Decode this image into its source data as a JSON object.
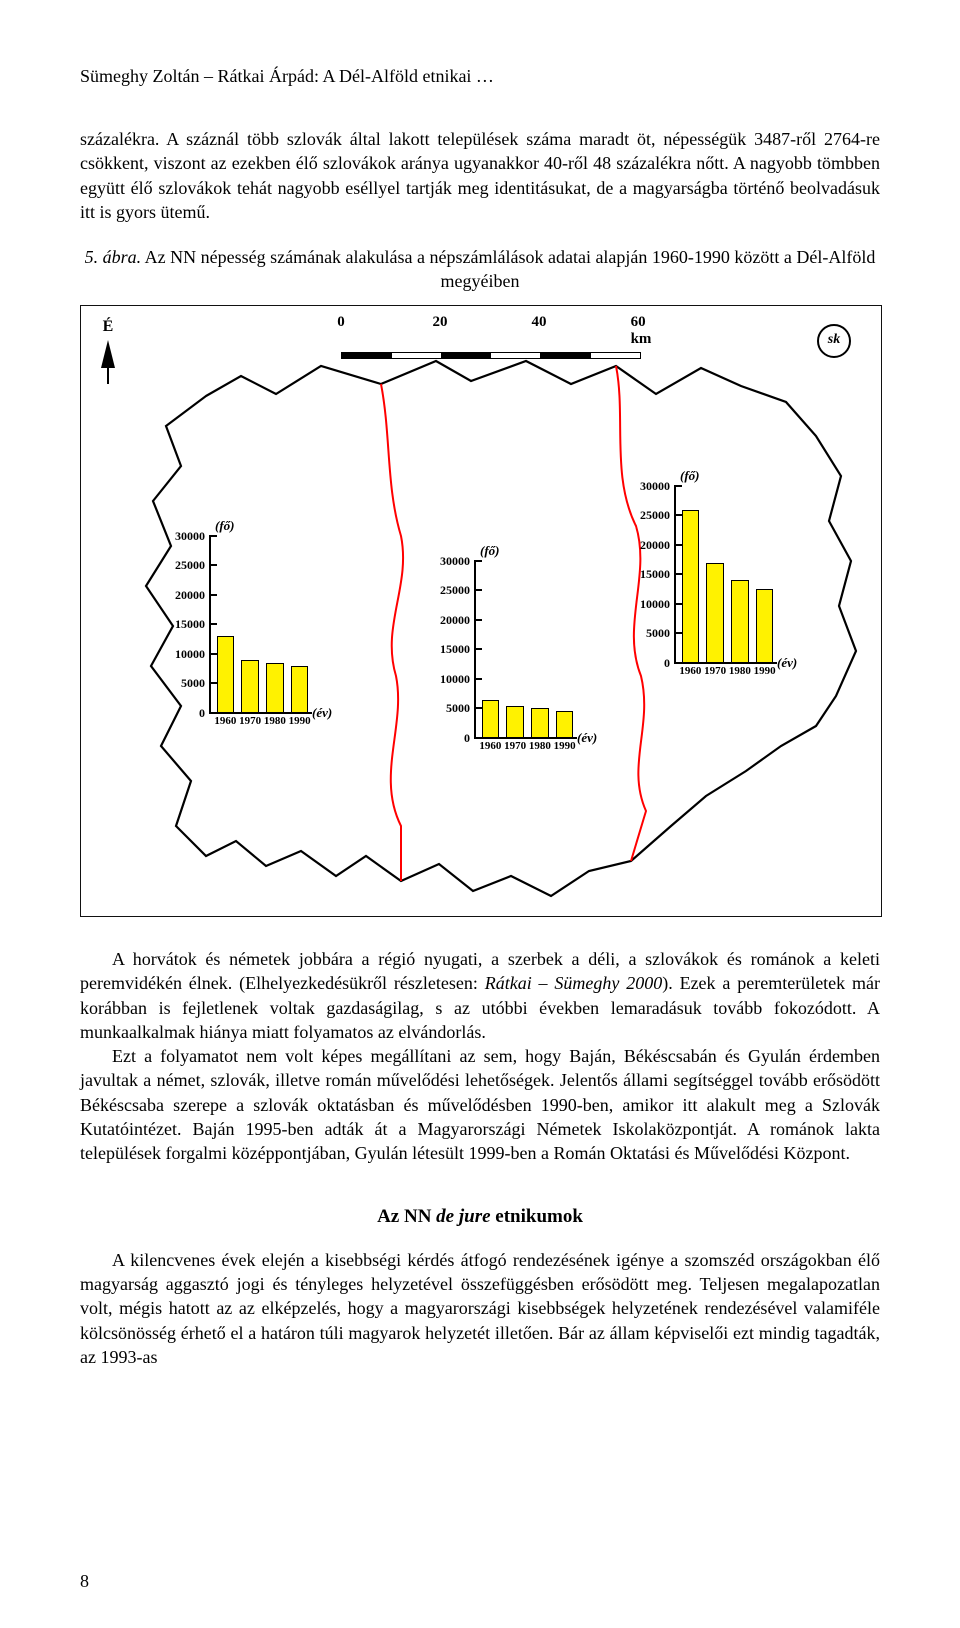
{
  "running_head": "Sümeghy Zoltán – Rátkai Árpád: A Dél-Alföld etnikai …",
  "para1": "százalékra. A száznál több szlovák által lakott települések száma maradt öt, népességük 3487-ről 2764-re csökkent, viszont az ezekben élő szlovákok aránya ugyanakkor 40-ről 48 százalékra nőtt. A nagyobb tömbben együtt élő szlovákok tehát nagyobb eséllyel tartják meg identitásukat, de a magyarságba történő beolvadásuk itt is gyors ütemű.",
  "caption": {
    "fig_label": "5. ábra.",
    "text": " Az NN népesség számának alakulása a népszámlálások adatai alapján 1960-1990 között a Dél-Alföld megyéiben"
  },
  "para2a": "A horvátok és németek jobbára a régió nyugati, a szerbek a déli, a szlovákok és románok a keleti peremvidékén élnek. (Elhelyezkedésükről részletesen: ",
  "para2b_ital": "Rátkai – Sümeghy 2000",
  "para2c": "). Ezek a peremterületek már korábban is fejletlenek voltak gazdaságilag, s az utóbbi években lemaradásuk tovább fokozódott. A munkaalkalmak hiánya miatt folyamatos az elvándorlás.",
  "para3": "Ezt a folyamatot nem volt képes megállítani az sem, hogy Baján, Békéscsabán és Gyulán érdemben javultak a német, szlovák, illetve román művelődési lehetőségek. Jelentős állami segítséggel tovább erősödött Békéscsaba szerepe a szlovák oktatásban és művelődésben 1990-ben, amikor itt alakult meg a Szlovák Kutatóintézet. Baján 1995-ben adták át a Magyarországi Németek Iskolaközpontját. A románok lakta települések forgalmi középpontjában, Gyulán létesült 1999-ben a Román Oktatási és Művelődési Központ.",
  "section_heading_a": "Az NN ",
  "section_heading_b_ital": "de jure",
  "section_heading_c": " etnikumok",
  "para4": "A kilencvenes évek elején a kisebbségi kérdés átfogó rendezésének igénye a szomszéd országokban élő magyarság aggasztó jogi és tényleges helyzetével összefüggésben erősödött meg. Teljesen megalapozatlan volt, mégis hatott az az elképzelés, hogy a magyarországi kisebbségek helyzetének rendezésével valamiféle kölcsönösség érhető el a határon túli magyarok helyzetét illetően. Bár az állam képviselői ezt mindig tagadták, az 1993-as",
  "page_num": "8",
  "figure": {
    "north_label": "É",
    "sk_label": "sk",
    "scale": {
      "ticks": [
        "0",
        "20",
        "40",
        "60 km"
      ]
    },
    "axis_unit": "(fő)",
    "year_unit": "(év)",
    "years": [
      "1960",
      "1970",
      "1980",
      "1990"
    ],
    "bar_color": "#fff200",
    "bar_border": "#000000",
    "map_outline_color": "#000000",
    "county_border_color": "#ff0000",
    "chart_left": {
      "ymax": 30000,
      "ytick_step": 5000,
      "values": [
        13000,
        9000,
        8500,
        8000
      ],
      "ylabels": [
        "30000",
        "25000",
        "20000",
        "15000",
        "10000",
        "5000",
        "0"
      ]
    },
    "chart_center": {
      "ymax": 30000,
      "ytick_step": 5000,
      "values": [
        6500,
        5500,
        5000,
        4500
      ],
      "ylabels": [
        "30000",
        "25000",
        "20000",
        "15000",
        "10000",
        "5000",
        "0"
      ]
    },
    "chart_right": {
      "ymax": 30000,
      "ytick_step": 5000,
      "values": [
        26000,
        17000,
        14000,
        12500
      ],
      "ylabels": [
        "30000",
        "25000",
        "20000",
        "15000",
        "10000",
        "5000",
        "0"
      ]
    }
  }
}
